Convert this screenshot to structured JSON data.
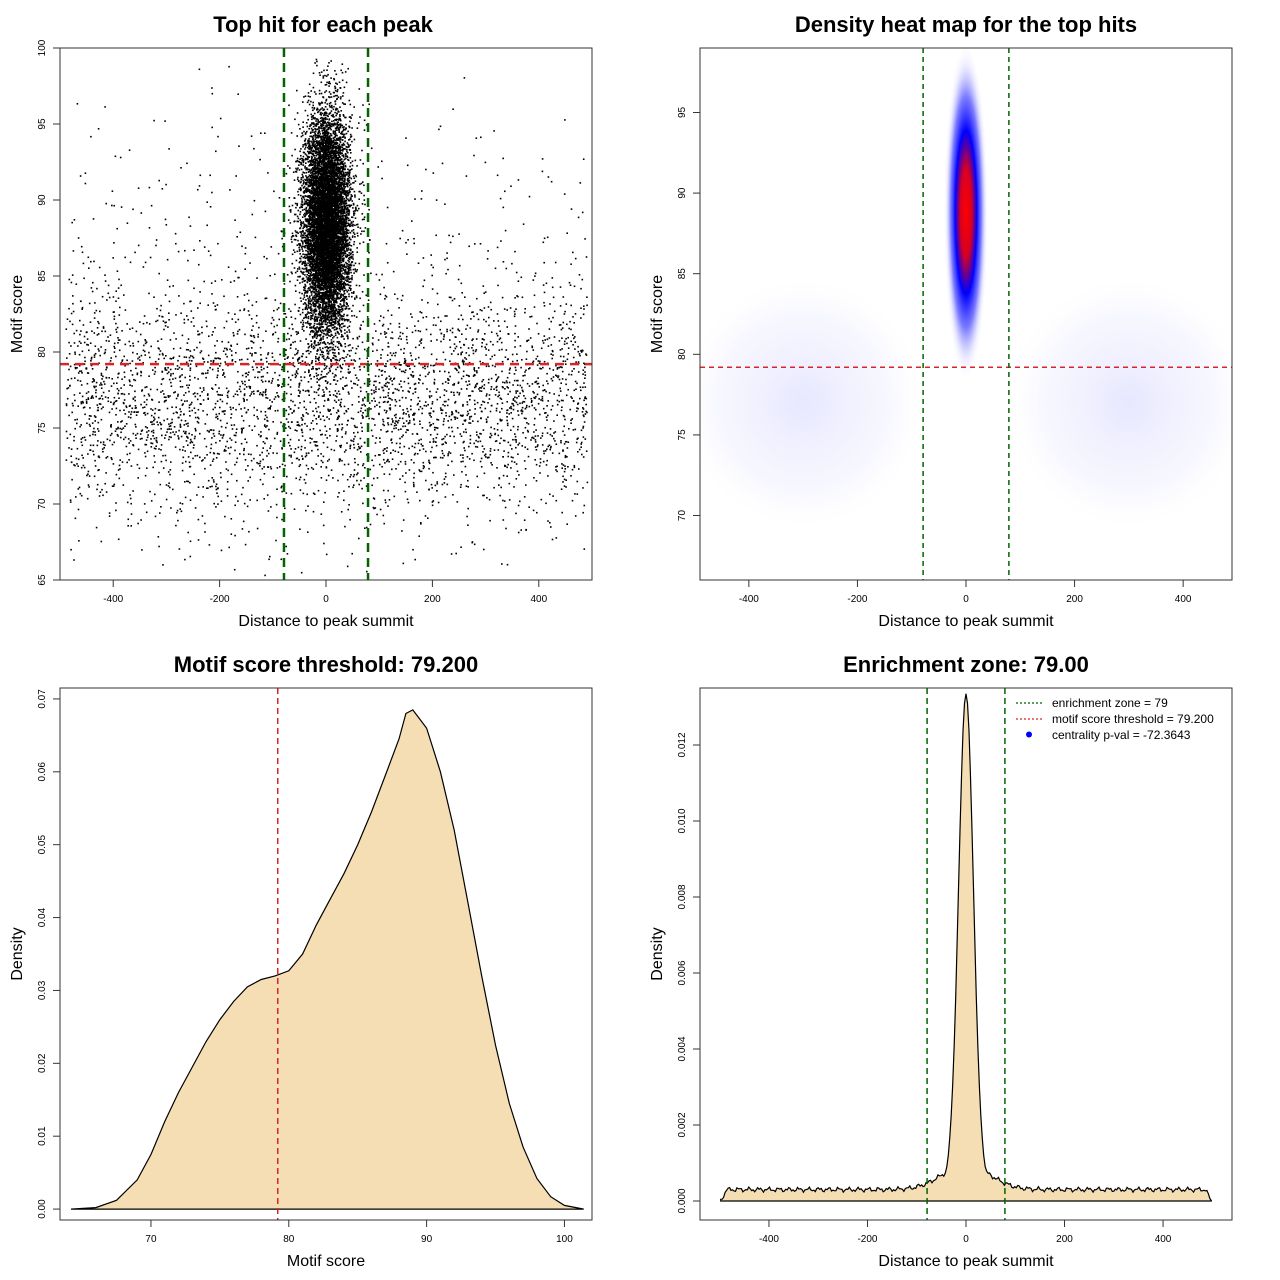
{
  "chart_data": [
    {
      "type": "scatter",
      "title": "Top hit for each peak",
      "xlabel": "Distance to peak summit",
      "ylabel": "Motif score",
      "xlim": [
        -500,
        500
      ],
      "ylim": [
        65,
        100
      ],
      "xticks": [
        -400,
        -200,
        0,
        200,
        400
      ],
      "yticks": [
        65,
        70,
        75,
        80,
        85,
        90,
        95,
        100
      ],
      "xtick_labels": [
        "-400",
        "-200",
        "0",
        "200",
        "400"
      ],
      "ytick_labels": [
        "65",
        "70",
        "75",
        "80",
        "85",
        "90",
        "95",
        "100"
      ],
      "threshold_y": 79.2,
      "zone_x": [
        -79,
        79
      ],
      "threshold_color": "#d62728",
      "zone_color": "#006400",
      "point_color": "#000000",
      "distributions": {
        "central": {
          "count": 9000,
          "x_mean": 0,
          "x_sd": 22,
          "y_mean": 88.5,
          "y_sd": 3.6
        },
        "background": {
          "count": 4000,
          "x_range": [
            -490,
            490
          ],
          "y_mean": 76.5,
          "y_sd": 3.8
        }
      }
    },
    {
      "type": "heatmap",
      "title": "Density heat map for the top hits",
      "xlabel": "Distance to peak summit",
      "ylabel": "Motif score",
      "xlim": [
        -490,
        490
      ],
      "ylim": [
        66,
        99
      ],
      "xticks": [
        -400,
        -200,
        0,
        200,
        400
      ],
      "yticks": [
        70,
        75,
        80,
        85,
        90,
        95
      ],
      "xtick_labels": [
        "-400",
        "-200",
        "0",
        "200",
        "400"
      ],
      "ytick_labels": [
        "70",
        "75",
        "80",
        "85",
        "90",
        "95"
      ],
      "threshold_y": 79.2,
      "zone_x": [
        -79,
        79
      ],
      "threshold_color": "#d62728",
      "zone_color": "#006400",
      "color_scale": [
        "#ffffff",
        "#0000ff",
        "#ff0000"
      ],
      "peak": {
        "x": 0,
        "y": 88.8,
        "x_sd": 18,
        "y_sd": 4.4
      }
    },
    {
      "type": "area",
      "title": "Motif score threshold: 79.200",
      "xlabel": "Motif score",
      "ylabel": "Density",
      "xlim": [
        63.4,
        102.0
      ],
      "ylim": [
        -0.0015,
        0.0715
      ],
      "xticks": [
        70,
        80,
        90,
        100
      ],
      "yticks": [
        0.0,
        0.01,
        0.02,
        0.03,
        0.04,
        0.05,
        0.06,
        0.07
      ],
      "xtick_labels": [
        "70",
        "80",
        "90",
        "100"
      ],
      "ytick_labels": [
        "0.00",
        "0.01",
        "0.02",
        "0.03",
        "0.04",
        "0.05",
        "0.06",
        "0.07"
      ],
      "threshold_x": 79.2,
      "threshold_color": "#d62728",
      "fill_color": "#f5deb3",
      "x": [
        64.2,
        66,
        67.5,
        69,
        70,
        71,
        72,
        73,
        74,
        75,
        76,
        77,
        78,
        79,
        80,
        81,
        82,
        83,
        84,
        85,
        86,
        87,
        88,
        88.5,
        89,
        90,
        91,
        92,
        93,
        94,
        95,
        96,
        97,
        98,
        99,
        100,
        101.4
      ],
      "y": [
        0.0,
        0.0002,
        0.0012,
        0.004,
        0.0075,
        0.012,
        0.016,
        0.0195,
        0.023,
        0.026,
        0.0285,
        0.0305,
        0.0315,
        0.032,
        0.0327,
        0.035,
        0.039,
        0.0425,
        0.046,
        0.05,
        0.0545,
        0.0595,
        0.0645,
        0.068,
        0.0685,
        0.066,
        0.06,
        0.052,
        0.042,
        0.032,
        0.0225,
        0.0145,
        0.0085,
        0.0042,
        0.0017,
        0.0005,
        0.0
      ]
    },
    {
      "type": "area",
      "title": "Enrichment zone: 79.00",
      "xlabel": "Distance to peak summit",
      "ylabel": "Density",
      "xlim": [
        -540,
        540
      ],
      "ylim": [
        -0.0005,
        0.0135
      ],
      "xticks": [
        -400,
        -200,
        0,
        200,
        400
      ],
      "yticks": [
        0.0,
        0.002,
        0.004,
        0.006,
        0.008,
        0.01,
        0.012
      ],
      "xtick_labels": [
        "-400",
        "-200",
        "0",
        "200",
        "400"
      ],
      "ytick_labels": [
        "0.000",
        "0.002",
        "0.004",
        "0.006",
        "0.008",
        "0.010",
        "0.012"
      ],
      "zone_x": [
        -79,
        79
      ],
      "zone_color": "#006400",
      "fill_color": "#f5deb3",
      "baseline_level": 0.0003,
      "baseline_range": [
        -498,
        498
      ],
      "peak": {
        "center": 0,
        "height": 0.0127,
        "sd": 15
      },
      "legend": [
        {
          "label": "enrichment zone = 79",
          "color": "#006400",
          "style": "dotted"
        },
        {
          "label": "motif score threshold = 79.200",
          "color": "#d62728",
          "style": "dotted"
        },
        {
          "label": "centrality p-val = -72.3643",
          "color": "#0000ff",
          "style": "point"
        }
      ]
    }
  ]
}
